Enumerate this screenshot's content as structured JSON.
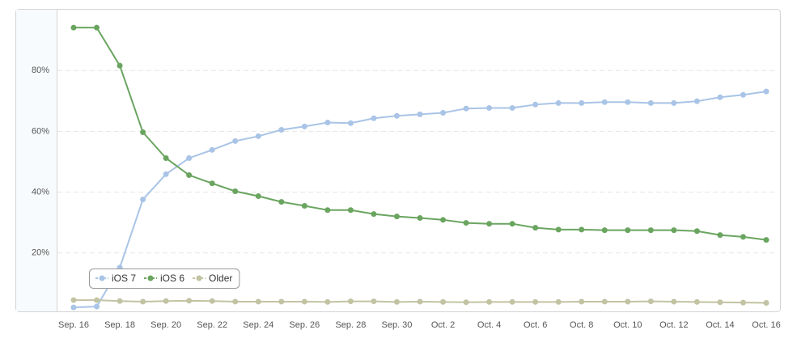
{
  "chart_data": {
    "type": "line",
    "categories": [
      "Sep. 16",
      null,
      "Sep. 18",
      null,
      "Sep. 20",
      null,
      "Sep. 22",
      null,
      "Sep. 24",
      null,
      "Sep. 26",
      null,
      "Sep. 28",
      null,
      "Sep. 30",
      null,
      "Oct. 2",
      null,
      "Oct. 4",
      null,
      "Oct. 6",
      null,
      "Oct. 8",
      null,
      "Oct. 10",
      null,
      "Oct. 12",
      null,
      "Oct. 14",
      null,
      "Oct. 16"
    ],
    "series": [
      {
        "name": "iOS 7",
        "color": "#a9c4e6",
        "values": [
          2.1,
          2.4,
          15.2,
          37.6,
          45.9,
          51.2,
          53.9,
          56.8,
          58.4,
          60.5,
          61.6,
          62.9,
          62.7,
          64.3,
          65.1,
          65.6,
          66.1,
          67.5,
          67.7,
          67.7,
          68.8,
          69.3,
          69.3,
          69.6,
          69.6,
          69.3,
          69.3,
          69.9,
          71.2,
          72.0,
          73.1
        ]
      },
      {
        "name": "iOS 6",
        "color": "#6aa560",
        "values": [
          94.1,
          94.1,
          81.6,
          59.7,
          51.2,
          45.6,
          42.9,
          40.3,
          38.7,
          36.8,
          35.5,
          34.1,
          34.1,
          32.8,
          32.0,
          31.5,
          30.9,
          29.9,
          29.6,
          29.6,
          28.3,
          27.7,
          27.7,
          27.5,
          27.5,
          27.5,
          27.5,
          27.2,
          25.9,
          25.3,
          24.3
        ]
      },
      {
        "name": "Older",
        "color": "#c2c3a2",
        "values": [
          4.5,
          4.5,
          4.2,
          4.0,
          4.2,
          4.3,
          4.2,
          4.0,
          4.0,
          4.0,
          4.0,
          3.9,
          4.1,
          4.1,
          3.9,
          4.0,
          3.9,
          3.8,
          3.9,
          3.9,
          3.9,
          3.9,
          4.0,
          4.0,
          4.0,
          4.1,
          4.0,
          3.9,
          3.8,
          3.7,
          3.6
        ]
      }
    ],
    "ylim": [
      0,
      100
    ],
    "yticks": [
      {
        "value": 20,
        "label": "20%"
      },
      {
        "value": 40,
        "label": "40%"
      },
      {
        "value": 60,
        "label": "60%"
      },
      {
        "value": 80,
        "label": "80%"
      }
    ],
    "grid": true,
    "legend": "lower left"
  }
}
